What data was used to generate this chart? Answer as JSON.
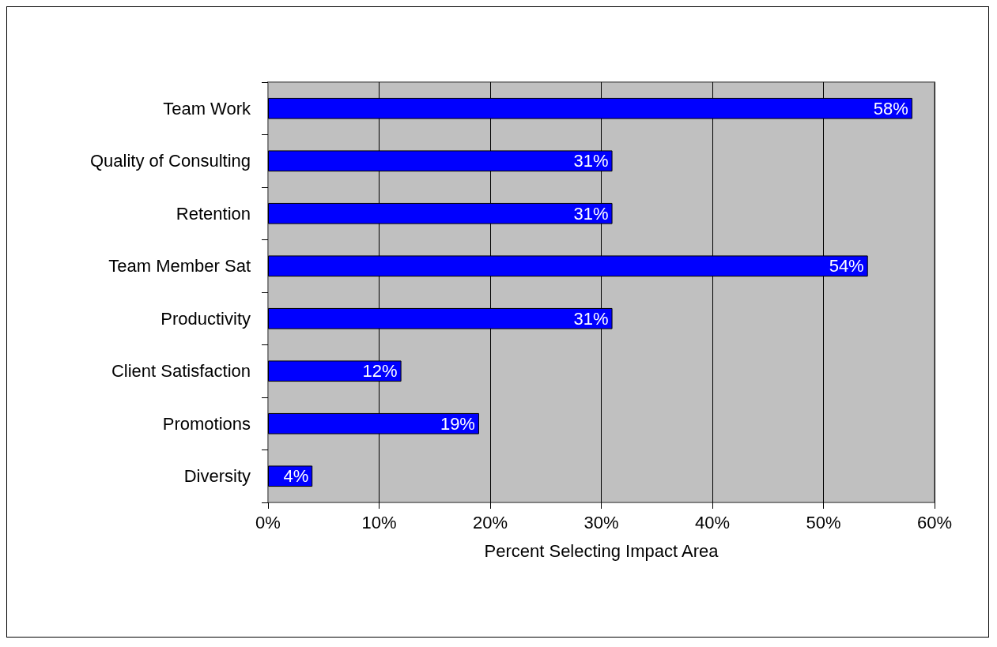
{
  "chart_data": {
    "type": "bar",
    "orientation": "horizontal",
    "xlabel": "Percent Selecting Impact Area",
    "categories": [
      "Team Work",
      "Quality of Consulting",
      "Retention",
      "Team Member Sat",
      "Productivity",
      "Client Satisfaction",
      "Promotions",
      "Diversity"
    ],
    "values": [
      58,
      31,
      31,
      54,
      31,
      12,
      19,
      4
    ],
    "value_labels": [
      "58%",
      "31%",
      "31%",
      "54%",
      "31%",
      "12%",
      "19%",
      "4%"
    ],
    "color": "#0000ff",
    "xlim": [
      0,
      60
    ],
    "xticks": [
      {
        "value": 0,
        "label": "0%"
      },
      {
        "value": 10,
        "label": "10%"
      },
      {
        "value": 20,
        "label": "20%"
      },
      {
        "value": 30,
        "label": "30%"
      },
      {
        "value": 40,
        "label": "40%"
      },
      {
        "value": 50,
        "label": "50%"
      },
      {
        "value": 60,
        "label": "60%"
      }
    ],
    "grid": "x"
  }
}
